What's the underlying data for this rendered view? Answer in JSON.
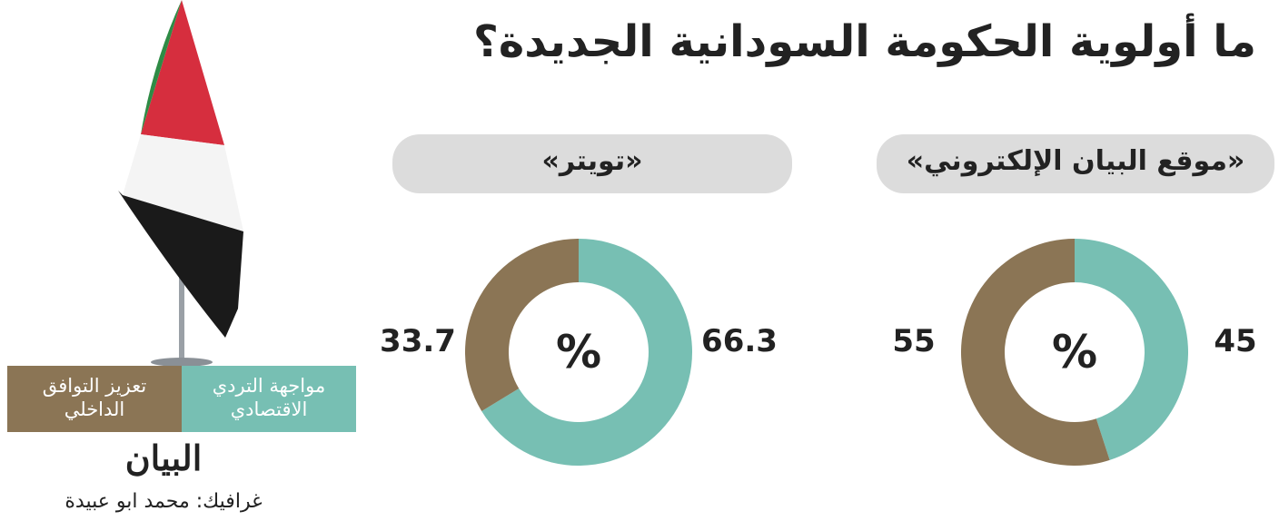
{
  "title": "ما أولوية الحكومة السودانية الجديدة؟",
  "legend": [
    {
      "name": "مواجهة التردي الاقتصادي",
      "color": "#77bfb3"
    },
    {
      "name": "تعزيز التوافق الداخلي",
      "color": "#8b7555"
    }
  ],
  "chart_data": [
    {
      "type": "pie",
      "title": "«موقع البيان الإلكتروني»",
      "center_label": "%",
      "values": [
        45,
        55
      ],
      "colors": [
        "#77bfb3",
        "#8b7555"
      ]
    },
    {
      "type": "pie",
      "title": "«تويتر»",
      "center_label": "%",
      "values": [
        66.3,
        33.7
      ],
      "colors": [
        "#77bfb3",
        "#8b7555"
      ]
    }
  ],
  "logo": "البيان",
  "credit": "غرافيك: محمد ابو عبيدة"
}
